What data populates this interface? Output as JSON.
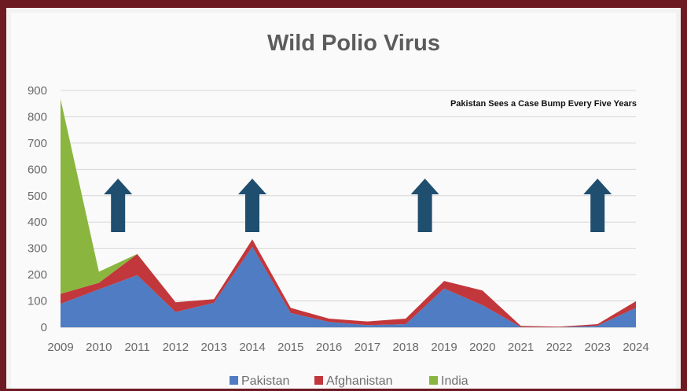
{
  "chart_data": {
    "type": "area",
    "stacked": true,
    "title": "Wild Polio Virus",
    "annotation": "Pakistan Sees a Case Bump Every Five Years",
    "categories": [
      "2009",
      "2010",
      "2011",
      "2012",
      "2013",
      "2014",
      "2015",
      "2016",
      "2017",
      "2018",
      "2019",
      "2020",
      "2021",
      "2022",
      "2023",
      "2024"
    ],
    "ylim": [
      0,
      900
    ],
    "yticks": [
      0,
      100,
      200,
      300,
      400,
      500,
      600,
      700,
      800,
      900
    ],
    "grid": true,
    "legend_position": "bottom",
    "series": [
      {
        "name": "Pakistan",
        "color": "#4f7cc2",
        "values": [
          89,
          144,
          198,
          58,
          93,
          306,
          54,
          20,
          8,
          12,
          147,
          84,
          1,
          0,
          6,
          74
        ]
      },
      {
        "name": "Afghanistan",
        "color": "#c2373b",
        "values": [
          38,
          25,
          80,
          37,
          14,
          28,
          20,
          13,
          14,
          21,
          29,
          56,
          4,
          2,
          6,
          25
        ]
      },
      {
        "name": "India",
        "color": "#8ab640",
        "values": [
          741,
          42,
          1,
          0,
          0,
          0,
          0,
          0,
          0,
          0,
          0,
          0,
          0,
          0,
          0,
          0
        ]
      }
    ],
    "arrows_at": [
      2010.5,
      2014,
      2018.5,
      2023
    ],
    "arrow_color": "#1f4e6f"
  }
}
